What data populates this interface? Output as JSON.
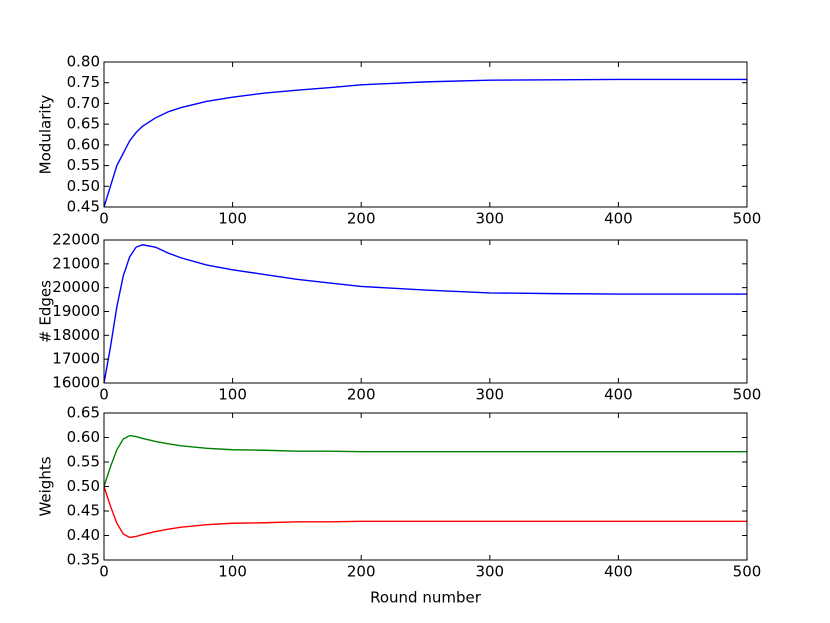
{
  "chart_data": [
    {
      "type": "line",
      "ylabel": "Modularity",
      "x": [
        0,
        5,
        10,
        15,
        20,
        25,
        30,
        40,
        50,
        60,
        80,
        100,
        125,
        150,
        175,
        200,
        250,
        300,
        350,
        400,
        450,
        500
      ],
      "values": [
        0.45,
        0.5,
        0.55,
        0.58,
        0.61,
        0.63,
        0.645,
        0.665,
        0.68,
        0.69,
        0.705,
        0.715,
        0.725,
        0.732,
        0.738,
        0.745,
        0.752,
        0.756,
        0.757,
        0.758,
        0.758,
        0.758
      ],
      "color": "#0000ff",
      "xlim": [
        0,
        500
      ],
      "xticks": [
        0,
        100,
        200,
        300,
        400,
        500
      ],
      "ylim": [
        0.45,
        0.8
      ],
      "yticks": [
        {
          "value": 0.45,
          "label": "0.45"
        },
        {
          "value": 0.5,
          "label": "0.50"
        },
        {
          "value": 0.55,
          "label": "0.55"
        },
        {
          "value": 0.6,
          "label": "0.60"
        },
        {
          "value": 0.65,
          "label": "0.65"
        },
        {
          "value": 0.7,
          "label": "0.70"
        },
        {
          "value": 0.75,
          "label": "0.75"
        },
        {
          "value": 0.8,
          "label": "0.80"
        }
      ]
    },
    {
      "type": "line",
      "ylabel": "# Edges",
      "x": [
        0,
        5,
        10,
        15,
        20,
        25,
        30,
        40,
        50,
        60,
        80,
        100,
        125,
        150,
        175,
        200,
        250,
        300,
        350,
        400,
        450,
        500
      ],
      "values": [
        16000,
        17500,
        19200,
        20500,
        21300,
        21700,
        21800,
        21700,
        21450,
        21250,
        20950,
        20750,
        20550,
        20350,
        20200,
        20050,
        19900,
        19780,
        19750,
        19730,
        19730,
        19730
      ],
      "color": "#0000ff",
      "xlim": [
        0,
        500
      ],
      "xticks": [
        0,
        100,
        200,
        300,
        400,
        500
      ],
      "ylim": [
        16000,
        22000
      ],
      "yticks": [
        16000,
        17000,
        18000,
        19000,
        20000,
        21000,
        22000
      ]
    },
    {
      "type": "line",
      "ylabel": "Weights",
      "xlabel": "Round number",
      "x": [
        0,
        5,
        10,
        15,
        20,
        25,
        30,
        40,
        50,
        60,
        80,
        100,
        125,
        150,
        175,
        200,
        250,
        300,
        350,
        400,
        450,
        500
      ],
      "series": [
        {
          "color": "#008000",
          "values": [
            0.5,
            0.54,
            0.575,
            0.597,
            0.604,
            0.602,
            0.598,
            0.592,
            0.587,
            0.583,
            0.578,
            0.575,
            0.574,
            0.572,
            0.572,
            0.571,
            0.571,
            0.571,
            0.571,
            0.571,
            0.571,
            0.571
          ]
        },
        {
          "color": "#ff0000",
          "values": [
            0.5,
            0.46,
            0.425,
            0.403,
            0.396,
            0.398,
            0.402,
            0.408,
            0.413,
            0.417,
            0.422,
            0.425,
            0.426,
            0.428,
            0.428,
            0.429,
            0.429,
            0.429,
            0.429,
            0.429,
            0.429,
            0.429
          ]
        }
      ],
      "xlim": [
        0,
        500
      ],
      "xticks": [
        0,
        100,
        200,
        300,
        400,
        500
      ],
      "ylim": [
        0.35,
        0.65
      ],
      "yticks": [
        {
          "value": 0.35,
          "label": "0.35"
        },
        {
          "value": 0.4,
          "label": "0.40"
        },
        {
          "value": 0.45,
          "label": "0.45"
        },
        {
          "value": 0.5,
          "label": "0.50"
        },
        {
          "value": 0.55,
          "label": "0.55"
        },
        {
          "value": 0.6,
          "label": "0.60"
        },
        {
          "value": 0.65,
          "label": "0.65"
        }
      ]
    }
  ]
}
